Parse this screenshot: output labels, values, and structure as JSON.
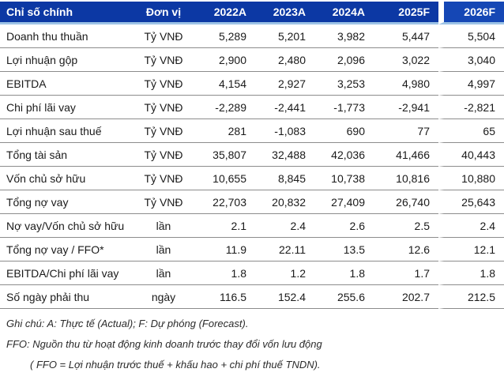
{
  "colors": {
    "header_bg": "#0c38a4",
    "header_last_bg": "#1547b5",
    "header_text": "#ffffff",
    "header_underline": "#9dc3e6",
    "row_line": "#8c8c8c",
    "text": "#1a1a1a"
  },
  "table": {
    "columns": [
      {
        "key": "label",
        "label": "Chỉ số chính",
        "align": "left"
      },
      {
        "key": "unit",
        "label": "Đơn vị",
        "align": "center"
      },
      {
        "key": "y2022a",
        "label": "2022A",
        "align": "right"
      },
      {
        "key": "y2023a",
        "label": "2023A",
        "align": "right"
      },
      {
        "key": "y2024a",
        "label": "2024A",
        "align": "right"
      },
      {
        "key": "y2025f",
        "label": "2025F",
        "align": "right"
      },
      {
        "key": "y2026f",
        "label": "2026F",
        "align": "right"
      }
    ],
    "rows": [
      {
        "label": "Doanh thu thuần",
        "unit": "Tỷ VNĐ",
        "values": [
          "5,289",
          "5,201",
          "3,982",
          "5,447",
          "5,504"
        ]
      },
      {
        "label": "Lợi nhuận gộp",
        "unit": "Tỷ VNĐ",
        "values": [
          "2,900",
          "2,480",
          "2,096",
          "3,022",
          "3,040"
        ]
      },
      {
        "label": "EBITDA",
        "unit": "Tỷ VNĐ",
        "values": [
          "4,154",
          "2,927",
          "3,253",
          "4,980",
          "4,997"
        ]
      },
      {
        "label": "Chi phí lãi vay",
        "unit": "Tỷ VNĐ",
        "values": [
          "-2,289",
          "-2,441",
          "-1,773",
          "-2,941",
          "-2,821"
        ]
      },
      {
        "label": "Lợi nhuận sau thuế",
        "unit": "Tỷ VNĐ",
        "values": [
          "281",
          "-1,083",
          "690",
          "77",
          "65"
        ]
      },
      {
        "label": "Tổng tài sản",
        "unit": "Tỷ VNĐ",
        "values": [
          "35,807",
          "32,488",
          "42,036",
          "41,466",
          "40,443"
        ]
      },
      {
        "label": "Vốn chủ sở hữu",
        "unit": "Tỷ VNĐ",
        "values": [
          "10,655",
          "8,845",
          "10,738",
          "10,816",
          "10,880"
        ]
      },
      {
        "label": "Tổng nợ vay",
        "unit": "Tỷ VNĐ",
        "values": [
          "22,703",
          "20,832",
          "27,409",
          "26,740",
          "25,643"
        ]
      },
      {
        "label": "Nợ vay/Vốn chủ sở hữu",
        "unit": "lần",
        "values": [
          "2.1",
          "2.4",
          "2.6",
          "2.5",
          "2.4"
        ]
      },
      {
        "label": "Tổng nợ vay / FFO*",
        "unit": "lần",
        "values": [
          "11.9",
          "22.11",
          "13.5",
          "12.6",
          "12.1"
        ]
      },
      {
        "label": "EBITDA/Chi phí lãi vay",
        "unit": "lần",
        "values": [
          "1.8",
          "1.2",
          "1.8",
          "1.7",
          "1.8"
        ]
      },
      {
        "label": "Số ngày phải thu",
        "unit": "ngày",
        "values": [
          "116.5",
          "152.4",
          "255.6",
          "202.7",
          "212.5"
        ]
      }
    ]
  },
  "footnotes": [
    "Ghi chú: A: Thực tế (Actual); F: Dự phóng (Forecast).",
    "FFO: Nguồn thu từ hoạt động kinh doanh trước thay đổi vốn lưu động",
    "( FFO = Lợi nhuận trước thuế + khấu hao + chi phí thuế TNDN)."
  ]
}
